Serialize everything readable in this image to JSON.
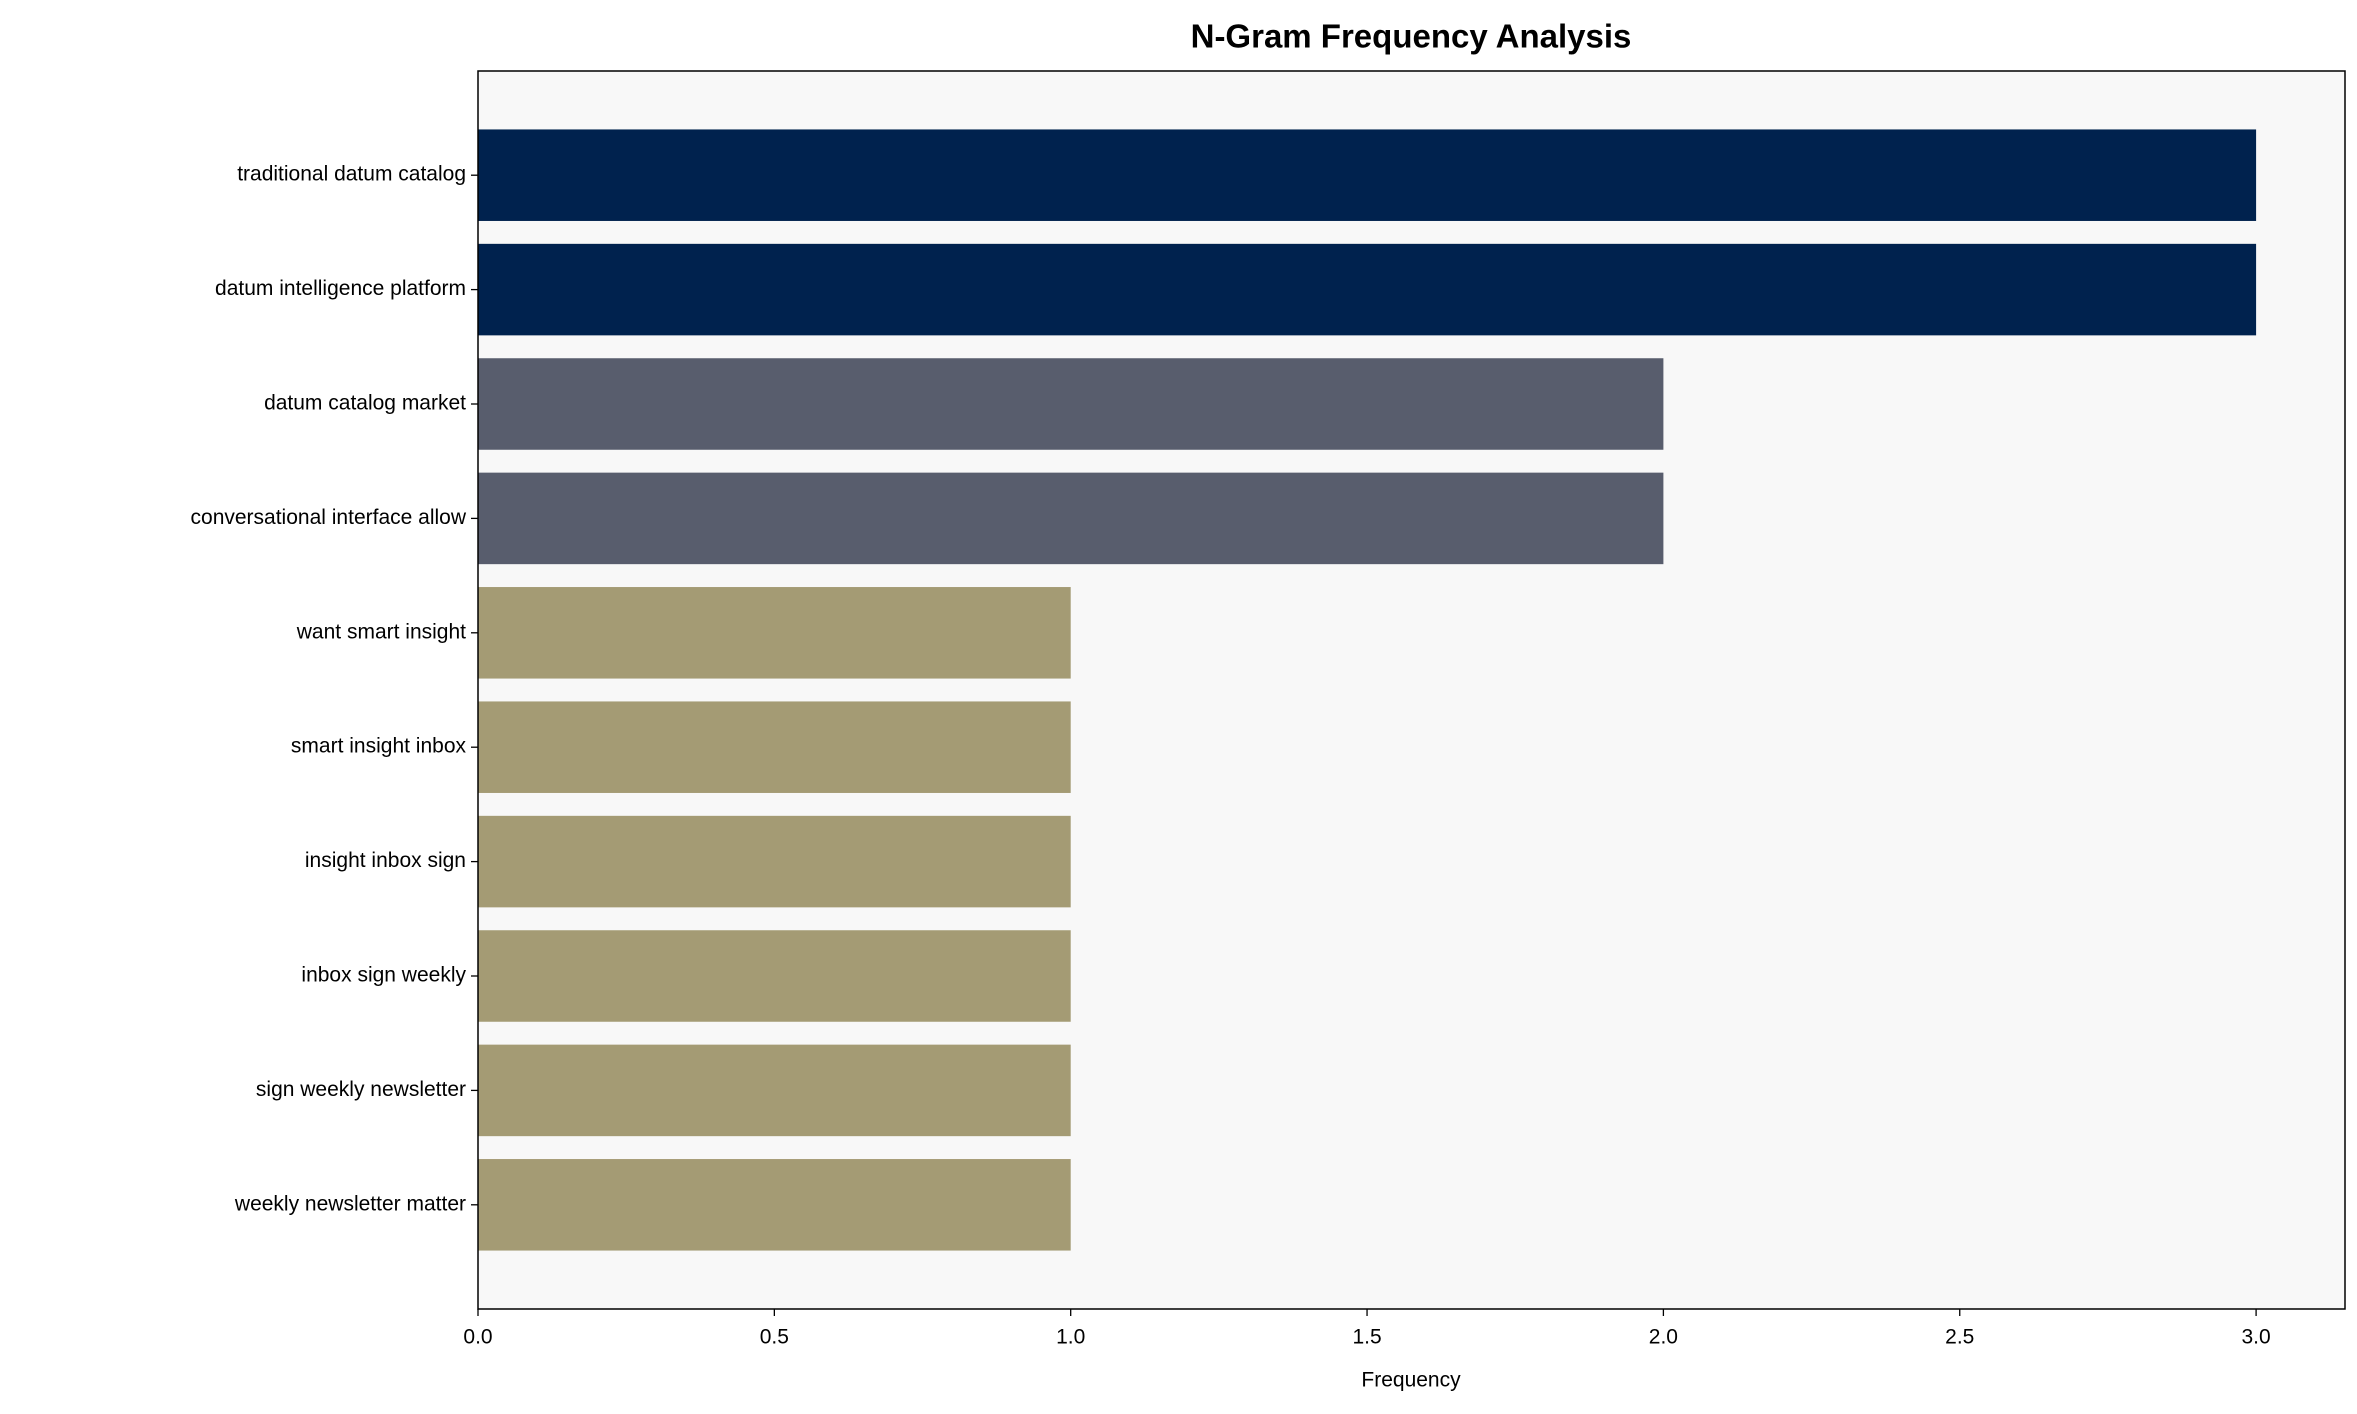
{
  "chart_data": {
    "type": "barh",
    "title": "N-Gram Frequency Analysis",
    "x_label": "Frequency",
    "categories": [
      "traditional datum catalog",
      "datum intelligence platform",
      "datum catalog market",
      "conversational interface allow",
      "want smart insight",
      "smart insight inbox",
      "insight inbox sign",
      "inbox sign weekly",
      "sign weekly newsletter",
      "weekly newsletter matter"
    ],
    "values": [
      3,
      3,
      2,
      2,
      1,
      1,
      1,
      1,
      1,
      1
    ],
    "colors": [
      "#00224e",
      "#00224e",
      "#585d6d",
      "#585d6d",
      "#a49b74",
      "#a49b74",
      "#a49b74",
      "#a49b74",
      "#a49b74",
      "#a49b74"
    ],
    "xlim": [
      0,
      3.15
    ],
    "xticks": [
      {
        "value": 0,
        "label": "0.0"
      },
      {
        "value": 0.5,
        "label": "0.5"
      },
      {
        "value": 1,
        "label": "1.0"
      },
      {
        "value": 1.5,
        "label": "1.5"
      },
      {
        "value": 2,
        "label": "2.0"
      },
      {
        "value": 2.5,
        "label": "2.5"
      },
      {
        "value": 3,
        "label": "3.0"
      }
    ],
    "plot_background": "#f8f8f8"
  }
}
